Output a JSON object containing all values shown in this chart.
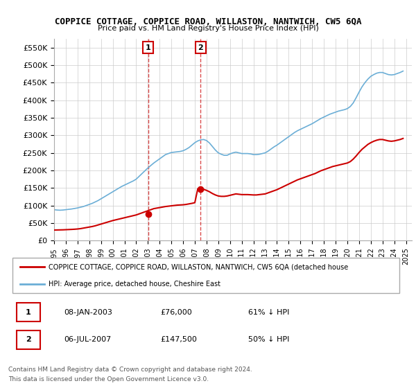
{
  "title": "COPPICE COTTAGE, COPPICE ROAD, WILLASTON, NANTWICH, CW5 6QA",
  "subtitle": "Price paid vs. HM Land Registry's House Price Index (HPI)",
  "legend_line1": "COPPICE COTTAGE, COPPICE ROAD, WILLASTON, NANTWICH, CW5 6QA (detached house",
  "legend_line2": "HPI: Average price, detached house, Cheshire East",
  "footer1": "Contains HM Land Registry data © Crown copyright and database right 2024.",
  "footer2": "This data is licensed under the Open Government Licence v3.0.",
  "transaction1_label": "1",
  "transaction1_date": "08-JAN-2003",
  "transaction1_price": "£76,000",
  "transaction1_hpi": "61% ↓ HPI",
  "transaction2_label": "2",
  "transaction2_date": "06-JUL-2007",
  "transaction2_price": "£147,500",
  "transaction2_hpi": "50% ↓ HPI",
  "hpi_color": "#6baed6",
  "price_color": "#cc0000",
  "marker_color": "#cc0000",
  "ylim": [
    0,
    575000
  ],
  "yticks": [
    0,
    50000,
    100000,
    150000,
    200000,
    250000,
    300000,
    350000,
    400000,
    450000,
    500000,
    550000
  ],
  "ytick_labels": [
    "£0",
    "£50K",
    "£100K",
    "£150K",
    "£200K",
    "£250K",
    "£300K",
    "£350K",
    "£400K",
    "£450K",
    "£500K",
    "£550K"
  ],
  "xlim_start": 1995.0,
  "xlim_end": 2025.5,
  "xtick_years": [
    1995,
    1996,
    1997,
    1998,
    1999,
    2000,
    2001,
    2002,
    2003,
    2004,
    2005,
    2006,
    2007,
    2008,
    2009,
    2010,
    2011,
    2012,
    2013,
    2014,
    2015,
    2016,
    2017,
    2018,
    2019,
    2020,
    2021,
    2022,
    2023,
    2024,
    2025
  ],
  "hpi_x": [
    1995.0,
    1995.25,
    1995.5,
    1995.75,
    1996.0,
    1996.25,
    1996.5,
    1996.75,
    1997.0,
    1997.25,
    1997.5,
    1997.75,
    1998.0,
    1998.25,
    1998.5,
    1998.75,
    1999.0,
    1999.25,
    1999.5,
    1999.75,
    2000.0,
    2000.25,
    2000.5,
    2000.75,
    2001.0,
    2001.25,
    2001.5,
    2001.75,
    2002.0,
    2002.25,
    2002.5,
    2002.75,
    2003.0,
    2003.25,
    2003.5,
    2003.75,
    2004.0,
    2004.25,
    2004.5,
    2004.75,
    2005.0,
    2005.25,
    2005.5,
    2005.75,
    2006.0,
    2006.25,
    2006.5,
    2006.75,
    2007.0,
    2007.25,
    2007.5,
    2007.75,
    2008.0,
    2008.25,
    2008.5,
    2008.75,
    2009.0,
    2009.25,
    2009.5,
    2009.75,
    2010.0,
    2010.25,
    2010.5,
    2010.75,
    2011.0,
    2011.25,
    2011.5,
    2011.75,
    2012.0,
    2012.25,
    2012.5,
    2012.75,
    2013.0,
    2013.25,
    2013.5,
    2013.75,
    2014.0,
    2014.25,
    2014.5,
    2014.75,
    2015.0,
    2015.25,
    2015.5,
    2015.75,
    2016.0,
    2016.25,
    2016.5,
    2016.75,
    2017.0,
    2017.25,
    2017.5,
    2017.75,
    2018.0,
    2018.25,
    2018.5,
    2018.75,
    2019.0,
    2019.25,
    2019.5,
    2019.75,
    2020.0,
    2020.25,
    2020.5,
    2020.75,
    2021.0,
    2021.25,
    2021.5,
    2021.75,
    2022.0,
    2022.25,
    2022.5,
    2022.75,
    2023.0,
    2023.25,
    2023.5,
    2023.75,
    2024.0,
    2024.25,
    2024.5,
    2024.75
  ],
  "hpi_y": [
    88000,
    87000,
    86500,
    87000,
    88000,
    89000,
    90000,
    91500,
    93000,
    95000,
    97000,
    100000,
    103000,
    106000,
    110000,
    114000,
    119000,
    124000,
    129000,
    134000,
    139000,
    144000,
    149000,
    154000,
    158000,
    162000,
    166000,
    170000,
    175000,
    183000,
    191000,
    199000,
    207000,
    214000,
    221000,
    227000,
    233000,
    239000,
    245000,
    248000,
    251000,
    252000,
    253000,
    254000,
    256000,
    260000,
    265000,
    272000,
    279000,
    284000,
    287000,
    288000,
    285000,
    278000,
    268000,
    258000,
    250000,
    246000,
    243000,
    243000,
    247000,
    250000,
    252000,
    250000,
    248000,
    248000,
    248000,
    247000,
    245000,
    245000,
    246000,
    248000,
    250000,
    255000,
    261000,
    267000,
    272000,
    278000,
    284000,
    290000,
    296000,
    302000,
    308000,
    313000,
    317000,
    321000,
    325000,
    329000,
    333000,
    338000,
    343000,
    348000,
    352000,
    356000,
    360000,
    363000,
    366000,
    369000,
    371000,
    373000,
    376000,
    382000,
    392000,
    407000,
    423000,
    438000,
    450000,
    460000,
    468000,
    473000,
    477000,
    479000,
    479000,
    476000,
    473000,
    472000,
    473000,
    476000,
    479000,
    483000
  ],
  "price_x": [
    1995.0,
    1995.25,
    1995.5,
    1995.75,
    1996.0,
    1996.25,
    1996.5,
    1996.75,
    1997.0,
    1997.25,
    1997.5,
    1997.75,
    1998.0,
    1998.25,
    1998.5,
    1998.75,
    1999.0,
    1999.25,
    1999.5,
    1999.75,
    2000.0,
    2000.25,
    2000.5,
    2000.75,
    2001.0,
    2001.25,
    2001.5,
    2001.75,
    2002.0,
    2002.25,
    2002.5,
    2002.75,
    2003.0,
    2003.25,
    2003.5,
    2003.75,
    2004.0,
    2004.25,
    2004.5,
    2004.75,
    2005.0,
    2005.25,
    2005.5,
    2005.75,
    2006.0,
    2006.25,
    2006.5,
    2006.75,
    2007.0,
    2007.25,
    2007.5,
    2007.75,
    2008.0,
    2008.25,
    2008.5,
    2008.75,
    2009.0,
    2009.25,
    2009.5,
    2009.75,
    2010.0,
    2010.25,
    2010.5,
    2010.75,
    2011.0,
    2011.25,
    2011.5,
    2011.75,
    2012.0,
    2012.25,
    2012.5,
    2012.75,
    2013.0,
    2013.25,
    2013.5,
    2013.75,
    2014.0,
    2014.25,
    2014.5,
    2014.75,
    2015.0,
    2015.25,
    2015.5,
    2015.75,
    2016.0,
    2016.25,
    2016.5,
    2016.75,
    2017.0,
    2017.25,
    2017.5,
    2017.75,
    2018.0,
    2018.25,
    2018.5,
    2018.75,
    2019.0,
    2019.25,
    2019.5,
    2019.75,
    2020.0,
    2020.25,
    2020.5,
    2020.75,
    2021.0,
    2021.25,
    2021.5,
    2021.75,
    2022.0,
    2022.25,
    2022.5,
    2022.75,
    2023.0,
    2023.25,
    2023.5,
    2023.75,
    2024.0,
    2024.25,
    2024.5,
    2024.75
  ],
  "price_y": [
    30000,
    30200,
    30400,
    30600,
    31000,
    31400,
    31800,
    32300,
    33000,
    34000,
    35500,
    37000,
    38500,
    40000,
    42000,
    44500,
    47000,
    49500,
    52000,
    54500,
    57000,
    59000,
    61000,
    63000,
    65000,
    67000,
    69000,
    71000,
    73000,
    76000,
    79000,
    82000,
    85000,
    88000,
    91000,
    92500,
    94000,
    95500,
    97000,
    98000,
    99000,
    100000,
    101000,
    101500,
    102000,
    103000,
    104500,
    106000,
    108000,
    147500,
    147500,
    146000,
    143000,
    139000,
    134000,
    130000,
    127000,
    126000,
    126000,
    127000,
    129000,
    131000,
    133000,
    132000,
    131000,
    131000,
    131000,
    130500,
    130000,
    130000,
    131000,
    132000,
    133000,
    136000,
    139000,
    142000,
    145000,
    149000,
    153000,
    157000,
    161000,
    165000,
    169000,
    173000,
    176000,
    179000,
    182000,
    185000,
    188000,
    191000,
    195000,
    199000,
    202000,
    205000,
    208000,
    211000,
    213000,
    215000,
    217000,
    219000,
    221000,
    225000,
    232000,
    241000,
    251000,
    260000,
    267000,
    274000,
    279000,
    283000,
    286000,
    288000,
    288000,
    286000,
    284000,
    283000,
    284000,
    286000,
    288000,
    291000
  ],
  "transaction1_x": 2003.02,
  "transaction1_y": 76000,
  "transaction2_x": 2007.5,
  "transaction2_y": 147500,
  "bg_color": "#ffffff",
  "grid_color": "#cccccc",
  "plot_bg": "#ffffff"
}
